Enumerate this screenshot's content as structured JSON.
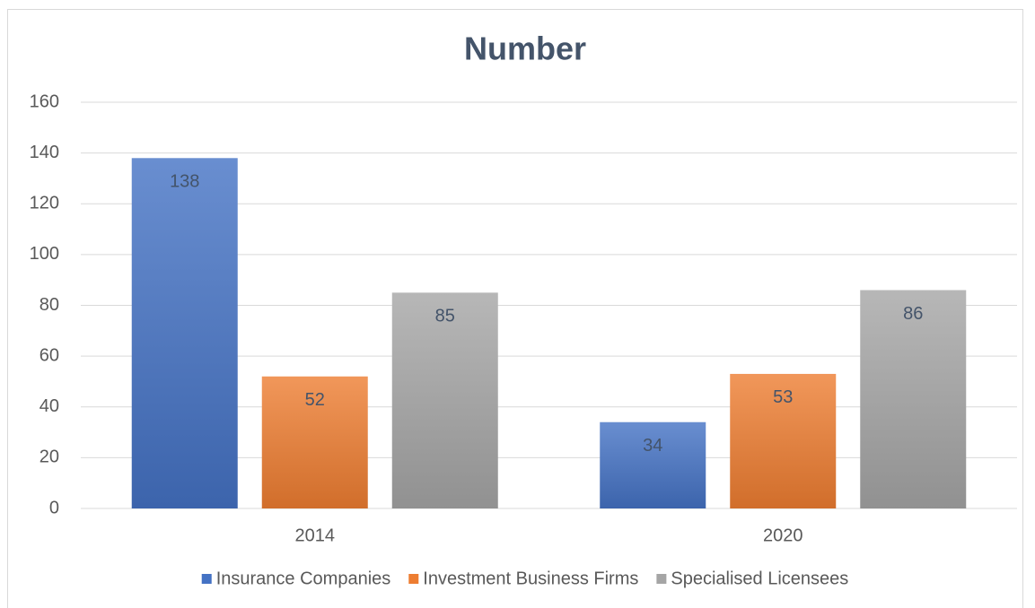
{
  "chart_data": {
    "type": "bar",
    "title": "Number",
    "categories": [
      "2014",
      "2020"
    ],
    "series": [
      {
        "name": "Insurance Companies",
        "color": "#4472c4",
        "values": [
          138,
          34
        ]
      },
      {
        "name": "Investment Business Firms",
        "color": "#ed7d31",
        "values": [
          52,
          53
        ]
      },
      {
        "name": "Specialised Licensees",
        "color": "#a5a5a5",
        "values": [
          85,
          86
        ]
      }
    ],
    "ylim": [
      0,
      160
    ],
    "yticks": [
      0,
      20,
      40,
      60,
      80,
      100,
      120,
      140,
      160
    ],
    "grid": true,
    "legend": "bottom"
  }
}
